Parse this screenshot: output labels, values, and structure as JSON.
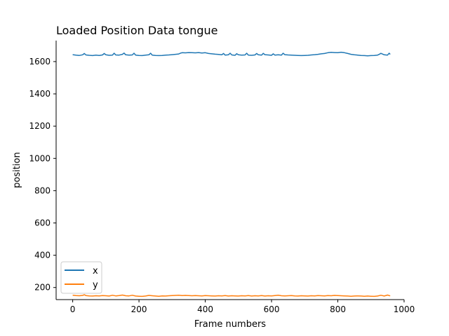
{
  "chart_data": {
    "type": "line",
    "title": "Loaded Position Data tongue",
    "xlabel": "Frame numbers",
    "ylabel": "position",
    "xlim": [
      -50,
      1000
    ],
    "ylim": [
      125,
      1730
    ],
    "xticks": [
      0,
      200,
      400,
      600,
      800,
      1000
    ],
    "yticks": [
      200,
      400,
      600,
      800,
      1000,
      1200,
      1400,
      1600
    ],
    "grid": false,
    "legend_position": "lower-left",
    "series": [
      {
        "name": "x",
        "color": "#1f77b4",
        "x": [
          0,
          10,
          20,
          30,
          35,
          40,
          50,
          60,
          70,
          80,
          90,
          95,
          100,
          110,
          120,
          125,
          130,
          140,
          150,
          155,
          160,
          170,
          180,
          185,
          190,
          200,
          210,
          220,
          230,
          235,
          240,
          250,
          260,
          270,
          280,
          290,
          300,
          310,
          320,
          325,
          330,
          340,
          350,
          360,
          370,
          380,
          390,
          400,
          410,
          420,
          430,
          440,
          450,
          455,
          460,
          470,
          475,
          480,
          490,
          495,
          500,
          510,
          520,
          525,
          530,
          540,
          550,
          555,
          560,
          570,
          575,
          580,
          590,
          600,
          605,
          610,
          620,
          630,
          635,
          640,
          650,
          660,
          670,
          680,
          690,
          700,
          710,
          720,
          730,
          740,
          750,
          760,
          770,
          780,
          790,
          800,
          810,
          820,
          830,
          840,
          850,
          860,
          870,
          880,
          890,
          900,
          910,
          920,
          925,
          930,
          940,
          950,
          955,
          958
        ],
        "y": [
          1643,
          1640,
          1638,
          1642,
          1650,
          1641,
          1639,
          1637,
          1640,
          1638,
          1641,
          1650,
          1642,
          1639,
          1640,
          1652,
          1641,
          1640,
          1645,
          1653,
          1642,
          1640,
          1641,
          1652,
          1640,
          1638,
          1637,
          1640,
          1642,
          1652,
          1640,
          1638,
          1637,
          1638,
          1640,
          1641,
          1643,
          1645,
          1647,
          1652,
          1655,
          1654,
          1656,
          1655,
          1654,
          1656,
          1653,
          1655,
          1650,
          1648,
          1646,
          1644,
          1642,
          1650,
          1640,
          1642,
          1652,
          1641,
          1639,
          1649,
          1642,
          1640,
          1641,
          1652,
          1640,
          1639,
          1641,
          1650,
          1642,
          1640,
          1651,
          1643,
          1641,
          1639,
          1648,
          1640,
          1642,
          1640,
          1652,
          1643,
          1641,
          1640,
          1639,
          1638,
          1637,
          1638,
          1639,
          1641,
          1643,
          1645,
          1648,
          1650,
          1655,
          1657,
          1656,
          1655,
          1658,
          1655,
          1650,
          1645,
          1642,
          1640,
          1638,
          1637,
          1636,
          1637,
          1638,
          1640,
          1645,
          1651,
          1642,
          1640,
          1652,
          1645
        ]
      },
      {
        "name": "y",
        "color": "#ff7f0e",
        "x": [
          0,
          10,
          20,
          30,
          35,
          40,
          50,
          60,
          70,
          80,
          90,
          100,
          110,
          120,
          130,
          140,
          150,
          160,
          170,
          180,
          190,
          200,
          210,
          220,
          230,
          240,
          250,
          260,
          270,
          280,
          290,
          300,
          310,
          320,
          330,
          340,
          350,
          360,
          370,
          380,
          390,
          400,
          410,
          420,
          430,
          440,
          450,
          460,
          470,
          480,
          490,
          500,
          510,
          520,
          530,
          540,
          550,
          560,
          570,
          580,
          590,
          600,
          610,
          620,
          630,
          640,
          650,
          660,
          670,
          680,
          690,
          700,
          710,
          720,
          730,
          740,
          750,
          760,
          770,
          780,
          790,
          800,
          810,
          820,
          830,
          840,
          850,
          860,
          870,
          880,
          890,
          900,
          910,
          920,
          930,
          940,
          950,
          958
        ],
        "y": [
          152,
          150,
          149,
          151,
          155,
          150,
          148,
          147,
          149,
          148,
          150,
          149,
          147,
          152,
          148,
          150,
          153,
          149,
          148,
          152,
          147,
          146,
          145,
          147,
          151,
          149,
          147,
          146,
          148,
          147,
          149,
          150,
          151,
          152,
          150,
          151,
          150,
          149,
          150,
          149,
          148,
          150,
          149,
          148,
          147,
          149,
          148,
          150,
          147,
          149,
          148,
          147,
          149,
          148,
          150,
          147,
          149,
          148,
          150,
          147,
          149,
          148,
          150,
          152,
          149,
          148,
          149,
          150,
          148,
          147,
          149,
          148,
          147,
          149,
          148,
          150,
          149,
          148,
          150,
          149,
          151,
          150,
          149,
          148,
          147,
          146,
          147,
          148,
          147,
          146,
          147,
          146,
          145,
          147,
          152,
          147,
          153,
          148
        ]
      }
    ]
  }
}
